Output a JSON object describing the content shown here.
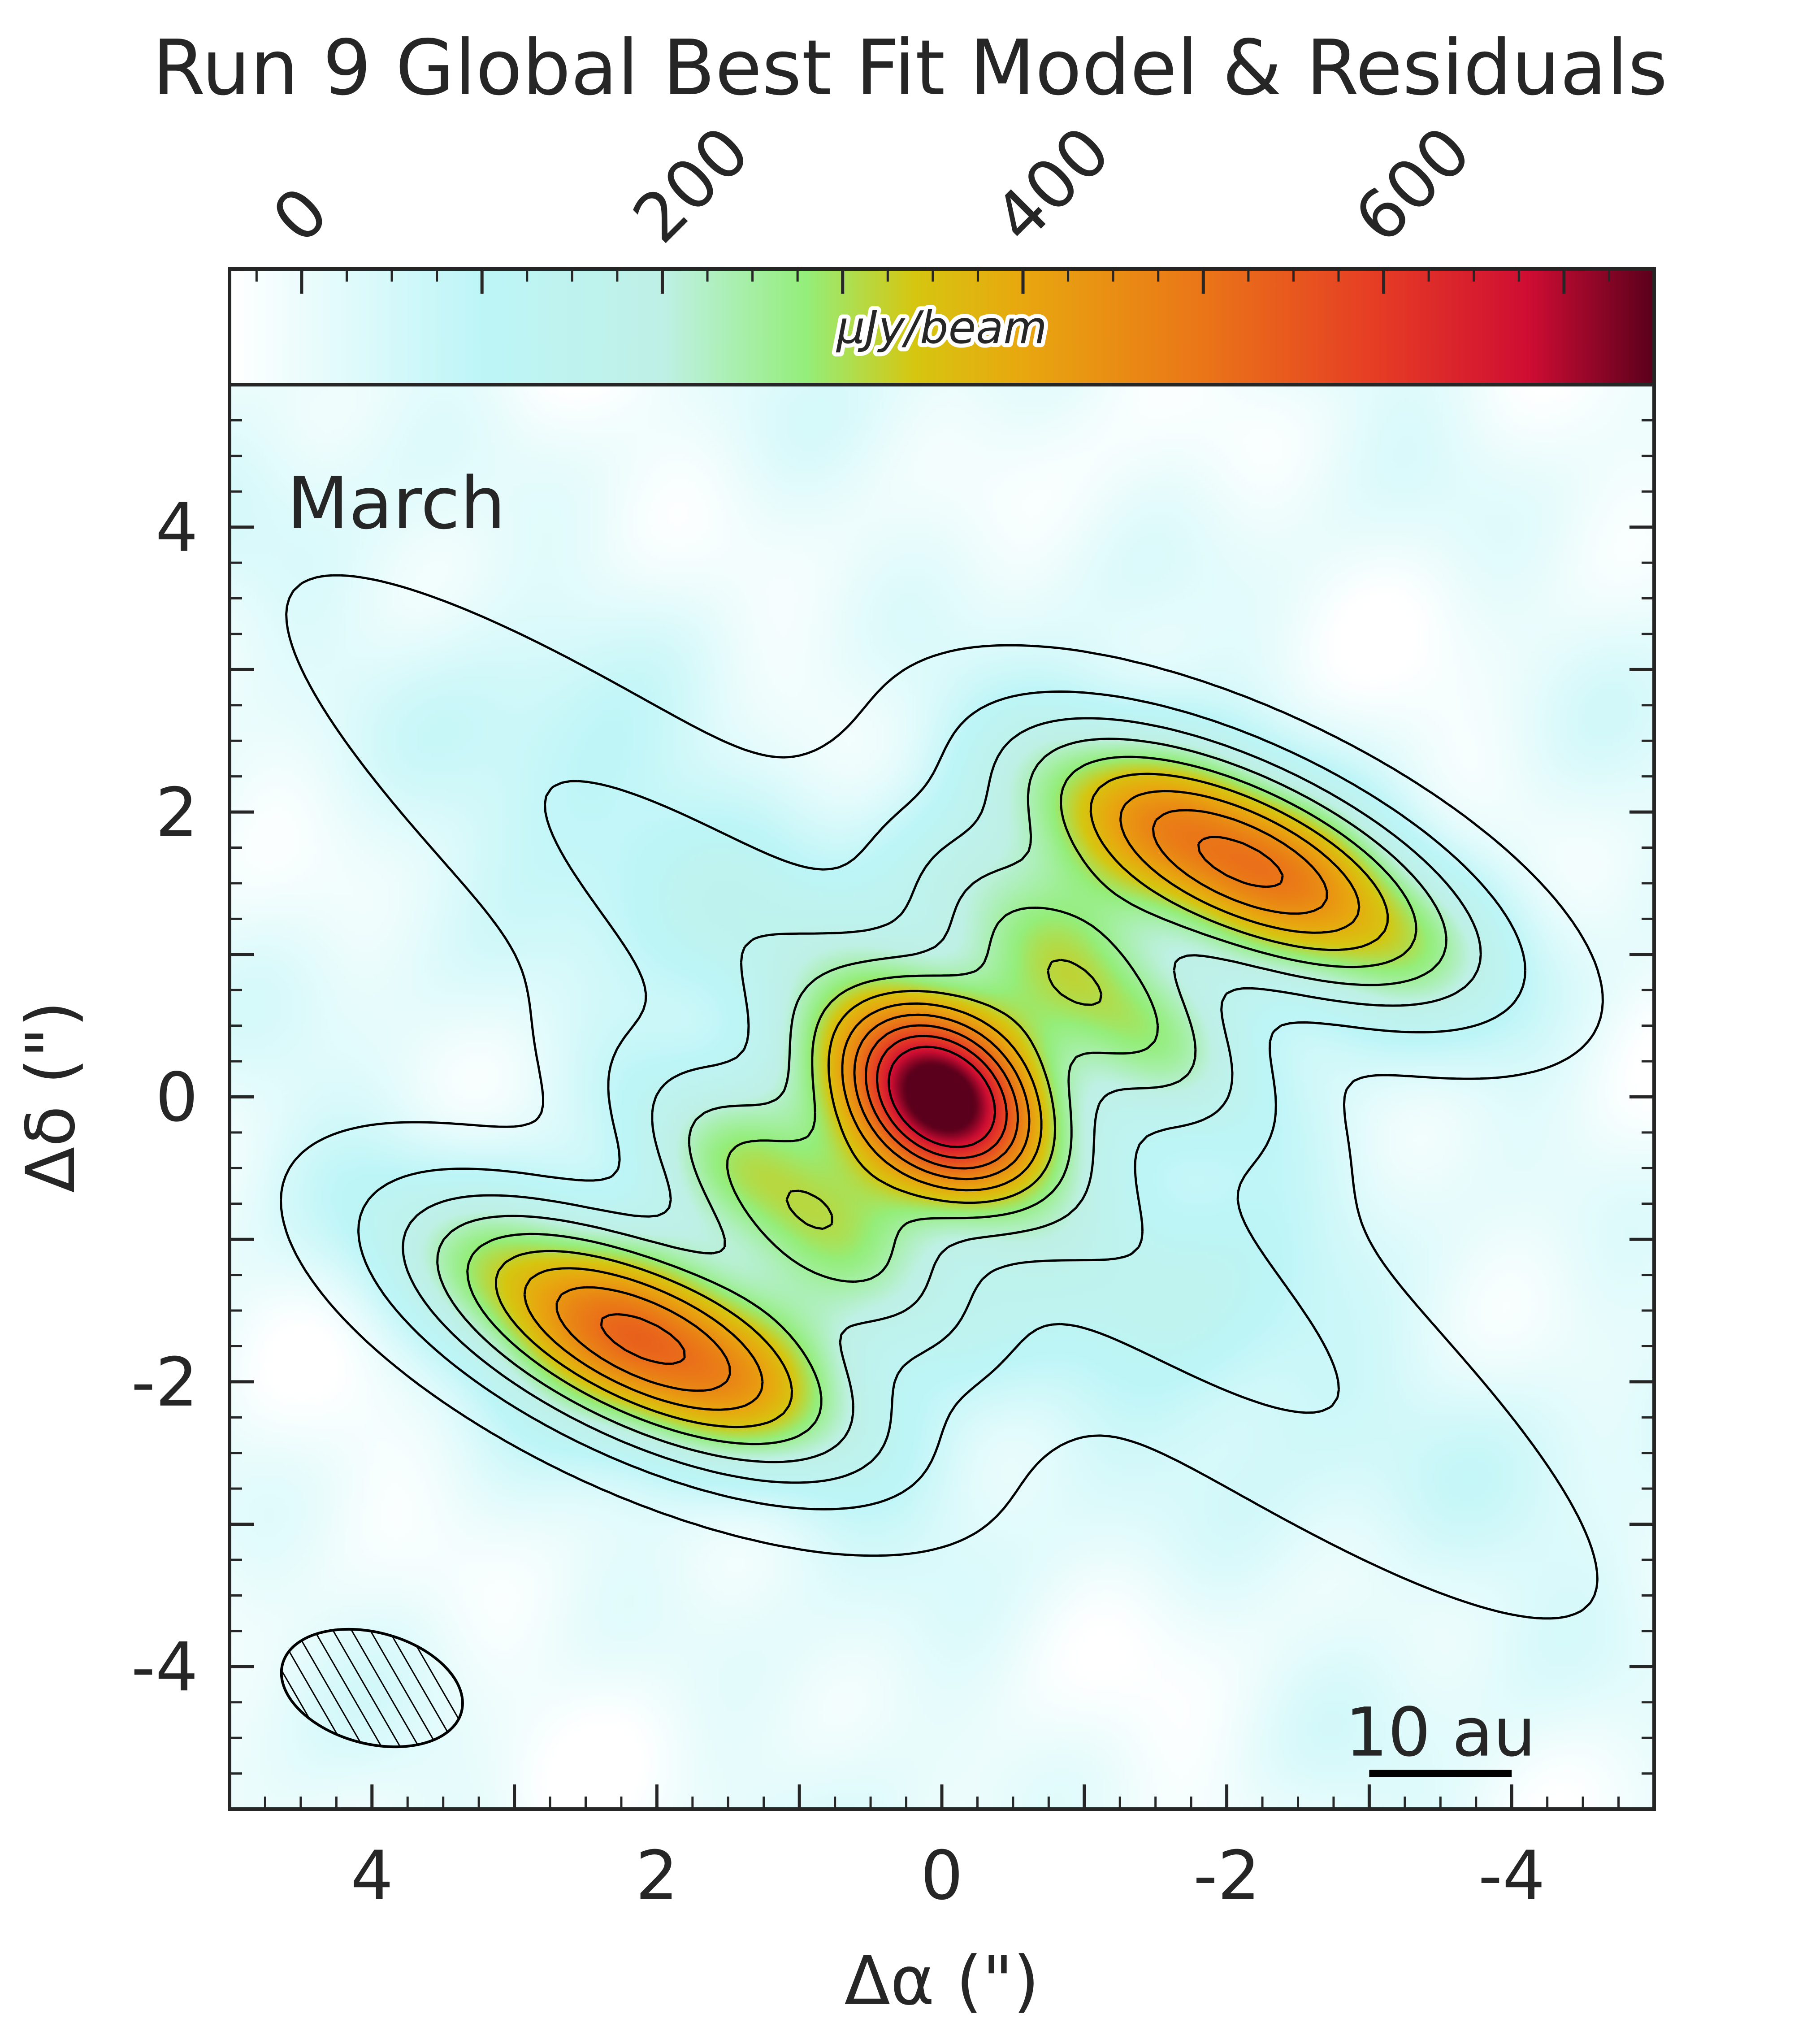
{
  "chart_data": {
    "type": "heatmap",
    "title": "Run 9 Global Best Fit Model & Residuals",
    "panel_label": "March",
    "xlabel": "Δα (\")",
    "ylabel": "Δδ (\")",
    "xlim": [
      5,
      -5
    ],
    "ylim": [
      -5,
      5
    ],
    "x_ticks": [
      4,
      2,
      0,
      -2,
      -4
    ],
    "y_ticks": [
      4,
      2,
      0,
      -2,
      -4
    ],
    "x_tick_labels": [
      "4",
      "2",
      "0",
      "-2",
      "-4"
    ],
    "y_tick_labels": [
      "4",
      "2",
      "0",
      "-2",
      "-4"
    ],
    "colorbar": {
      "label": "μJy/beam",
      "range": [
        -40,
        750
      ],
      "ticks": [
        0,
        200,
        400,
        600
      ],
      "tick_labels": [
        "0",
        "200",
        "400",
        "600"
      ],
      "position": "top",
      "stops": [
        {
          "v": -40,
          "color": "#ffffff"
        },
        {
          "v": 100,
          "color": "#bdf5f7"
        },
        {
          "v": 200,
          "color": "#bff0e6"
        },
        {
          "v": 280,
          "color": "#94ee7a"
        },
        {
          "v": 340,
          "color": "#d6c610"
        },
        {
          "v": 400,
          "color": "#e8a70f"
        },
        {
          "v": 500,
          "color": "#ea7518"
        },
        {
          "v": 600,
          "color": "#e53a25"
        },
        {
          "v": 680,
          "color": "#cf0d33"
        },
        {
          "v": 750,
          "color": "#5a001c"
        }
      ]
    },
    "components": [
      {
        "x": 0.0,
        "y": 0.0,
        "peak": 610,
        "sigma_major": 0.55,
        "sigma_minor": 0.42,
        "pa": 40
      },
      {
        "x": 2.1,
        "y": -1.7,
        "peak": 530,
        "sigma_major": 1.15,
        "sigma_minor": 0.45,
        "pa": 25
      },
      {
        "x": -2.1,
        "y": 1.65,
        "peak": 530,
        "sigma_major": 1.15,
        "sigma_minor": 0.45,
        "pa": 25
      },
      {
        "x": 1.0,
        "y": -0.8,
        "peak": 300,
        "sigma_major": 1.0,
        "sigma_minor": 0.38,
        "pa": 38
      },
      {
        "x": -1.0,
        "y": 0.8,
        "peak": 300,
        "sigma_major": 1.0,
        "sigma_minor": 0.38,
        "pa": 38
      },
      {
        "x": 0.0,
        "y": 0.0,
        "peak": 170,
        "sigma_major": 3.1,
        "sigma_minor": 0.6,
        "pa": 38
      }
    ],
    "contour_levels": [
      -30,
      30,
      90,
      150,
      210,
      270,
      330,
      390,
      450,
      510,
      570,
      630
    ],
    "beam": {
      "x": 4.0,
      "y": -4.15,
      "major": 1.3,
      "minor": 0.78,
      "pa": -15
    },
    "scale_bar": {
      "label": "10 au",
      "x_start": -3.0,
      "x_end": -4.0,
      "y": -4.75
    },
    "grid": false
  }
}
